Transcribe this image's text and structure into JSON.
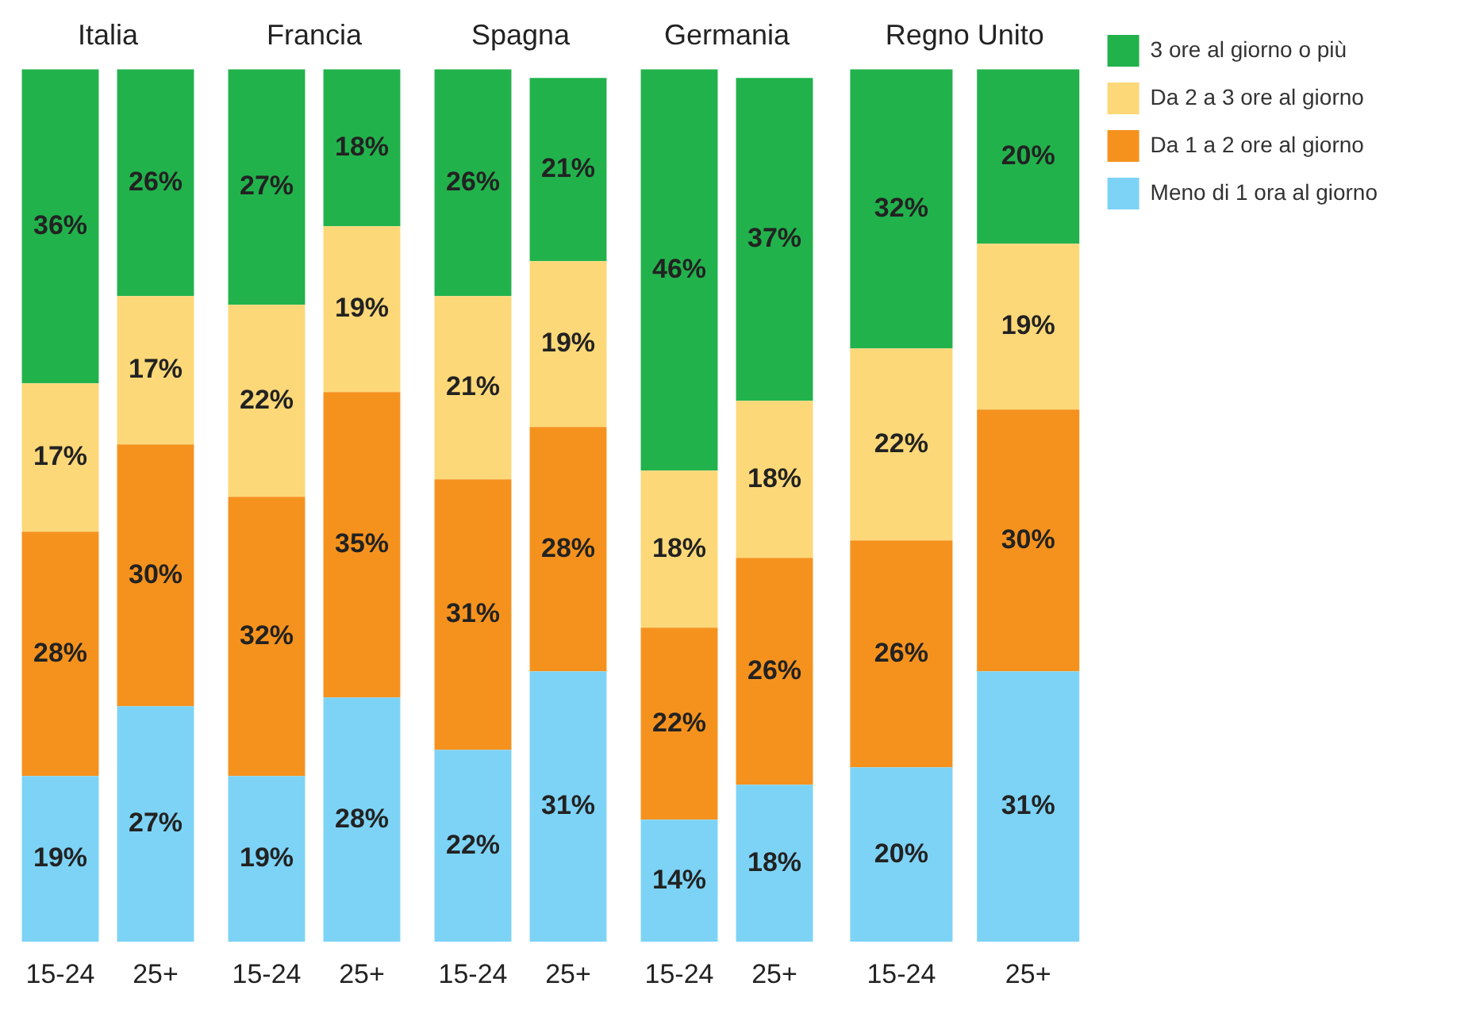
{
  "chart_data": [
    {
      "type": "bar",
      "title": "Italia",
      "categories": [
        "15-24",
        "25+"
      ],
      "stacked": true,
      "tick_labels": "x",
      "series": [
        {
          "color": "#7dd3f5",
          "values": [
            19,
            27
          ],
          "value_labels": [
            "19%",
            "27%"
          ]
        },
        {
          "color": "#f5921e",
          "values": [
            28,
            30
          ],
          "value_labels": [
            "28%",
            "30%"
          ]
        },
        {
          "color": "#fdd878",
          "values": [
            17,
            17
          ],
          "value_labels": [
            "17%",
            "17%"
          ]
        },
        {
          "color": "#22b24c",
          "values": [
            36,
            26
          ],
          "value_labels": [
            "36%",
            "26%"
          ]
        }
      ]
    },
    {
      "type": "bar",
      "title": "Francia",
      "categories": [
        "15-24",
        "25+"
      ],
      "stacked": true,
      "tick_labels": "x",
      "series": [
        {
          "color": "#7dd3f5",
          "values": [
            19,
            28
          ],
          "value_labels": [
            "19%",
            "28%"
          ]
        },
        {
          "color": "#f5921e",
          "values": [
            32,
            35
          ],
          "value_labels": [
            "32%",
            "35%"
          ]
        },
        {
          "color": "#fdd878",
          "values": [
            22,
            19
          ],
          "value_labels": [
            "22%",
            "19%"
          ]
        },
        {
          "color": "#22b24c",
          "values": [
            27,
            18
          ],
          "value_labels": [
            "27%",
            "18%"
          ]
        }
      ]
    },
    {
      "type": "bar",
      "title": "Spagna",
      "categories": [
        "15-24",
        "25+"
      ],
      "stacked": true,
      "tick_labels": "x",
      "series": [
        {
          "color": "#7dd3f5",
          "values": [
            22,
            31
          ],
          "value_labels": [
            "22%",
            "31%"
          ]
        },
        {
          "color": "#f5921e",
          "values": [
            31,
            28
          ],
          "value_labels": [
            "31%",
            "28%"
          ]
        },
        {
          "color": "#fdd878",
          "values": [
            21,
            19
          ],
          "value_labels": [
            "21%",
            "19%"
          ]
        },
        {
          "color": "#22b24c",
          "values": [
            26,
            21
          ],
          "value_labels": [
            "26%",
            "21%"
          ]
        }
      ]
    },
    {
      "type": "bar",
      "title": "Germania",
      "categories": [
        "15-24",
        "25+"
      ],
      "stacked": true,
      "tick_labels": "x",
      "series": [
        {
          "color": "#7dd3f5",
          "values": [
            14,
            18
          ],
          "value_labels": [
            "14%",
            "18%"
          ]
        },
        {
          "color": "#f5921e",
          "values": [
            22,
            26
          ],
          "value_labels": [
            "22%",
            "26%"
          ]
        },
        {
          "color": "#fdd878",
          "values": [
            18,
            18
          ],
          "value_labels": [
            "18%",
            "18%"
          ]
        },
        {
          "color": "#22b24c",
          "values": [
            46,
            37
          ],
          "value_labels": [
            "46%",
            "37%"
          ]
        }
      ]
    },
    {
      "type": "bar",
      "title": "Regno Unito",
      "categories": [
        "15-24",
        "25+"
      ],
      "stacked": true,
      "tick_labels": "x",
      "legend": "right",
      "series": [
        {
          "name": "Meno di 1 ora al giorno",
          "color": "#7dd3f5",
          "values": [
            20,
            31
          ],
          "value_labels": [
            "20%",
            "31%"
          ]
        },
        {
          "name": "Da 1 a 2 ore al giorno",
          "color": "#f5921e",
          "values": [
            26,
            30
          ],
          "value_labels": [
            "26%",
            "30%"
          ]
        },
        {
          "name": "Da 2 a 3 ore al giorno",
          "color": "#fdd878",
          "values": [
            22,
            19
          ],
          "value_labels": [
            "22%",
            "19%"
          ]
        },
        {
          "name": "3 ore al giorno o più",
          "color": "#22b24c",
          "values": [
            32,
            20
          ],
          "value_labels": [
            "32%",
            "20%"
          ]
        }
      ]
    }
  ]
}
